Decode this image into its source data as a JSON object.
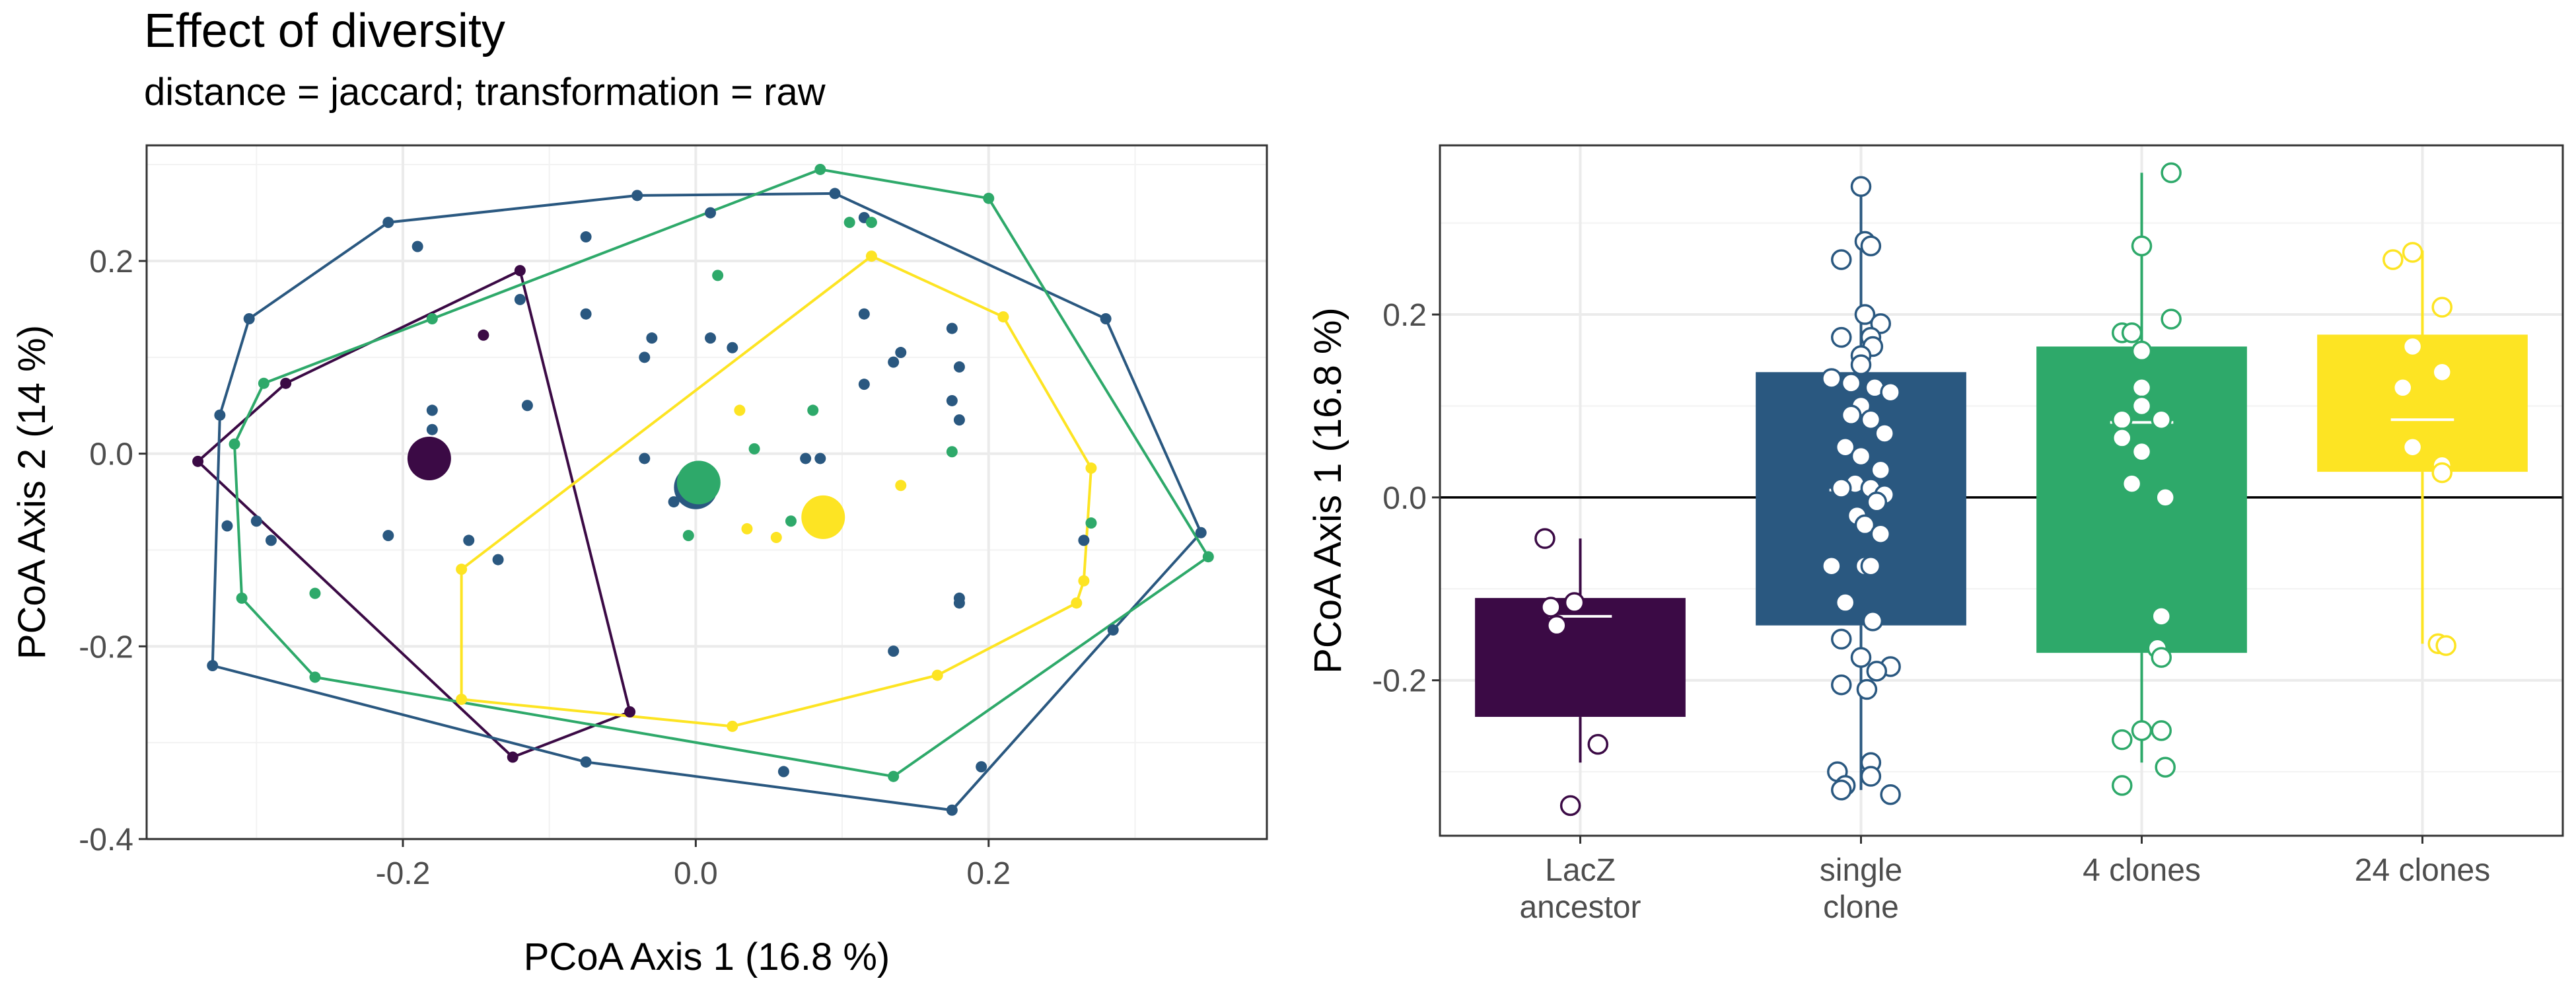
{
  "title": "Effect of diversity",
  "subtitle": "distance = jaccard; transformation = raw",
  "colors": {
    "LacZ ancestor": "#3b0a45",
    "single clone": "#2a5880",
    "4 clones": "#2ea96a",
    "24 clones": "#fde423"
  },
  "chart_data": [
    {
      "type": "scatter",
      "xlabel": "PCoA Axis 1 (16.8 %)",
      "ylabel": "PCoA Axis 2 (14 %)",
      "xlim": [
        -0.375,
        0.39
      ],
      "ylim": [
        -0.4,
        0.32
      ],
      "x_ticks": [
        "-0.2",
        "0.0",
        "0.2"
      ],
      "y_ticks": [
        "0.2",
        "0.0",
        "-0.2",
        "-0.4"
      ],
      "grid": true,
      "legend": "none",
      "series": [
        {
          "group": "LacZ ancestor",
          "points": [
            [
              -0.12,
              0.19
            ],
            [
              -0.28,
              0.073
            ],
            [
              -0.34,
              -0.008
            ],
            [
              -0.125,
              -0.315
            ],
            [
              -0.045,
              -0.268
            ],
            [
              -0.145,
              0.123
            ]
          ],
          "hull": [
            [
              -0.12,
              0.19
            ],
            [
              -0.28,
              0.073
            ],
            [
              -0.34,
              -0.008
            ],
            [
              -0.125,
              -0.315
            ],
            [
              -0.045,
              -0.268
            ]
          ],
          "centroid": [
            -0.182,
            -0.005
          ]
        },
        {
          "group": "single clone",
          "points": [
            [
              -0.21,
              0.24
            ],
            [
              -0.04,
              0.268
            ],
            [
              0.095,
              0.27
            ],
            [
              0.28,
              0.14
            ],
            [
              0.345,
              -0.082
            ],
            [
              0.285,
              -0.183
            ],
            [
              0.175,
              -0.37
            ],
            [
              -0.075,
              -0.32
            ],
            [
              -0.33,
              -0.22
            ],
            [
              -0.325,
              0.04
            ],
            [
              -0.305,
              0.14
            ],
            [
              -0.19,
              0.215
            ],
            [
              0.01,
              0.25
            ],
            [
              0.115,
              0.245
            ],
            [
              -0.075,
              0.225
            ],
            [
              -0.12,
              0.16
            ],
            [
              -0.075,
              0.145
            ],
            [
              -0.03,
              0.12
            ],
            [
              0.01,
              0.12
            ],
            [
              0.025,
              0.11
            ],
            [
              0.115,
              0.145
            ],
            [
              0.14,
              0.105
            ],
            [
              0.135,
              0.095
            ],
            [
              0.175,
              0.13
            ],
            [
              0.18,
              0.09
            ],
            [
              0.115,
              0.072
            ],
            [
              0.175,
              0.055
            ],
            [
              0.18,
              0.035
            ],
            [
              -0.035,
              0.1
            ],
            [
              -0.18,
              0.045
            ],
            [
              -0.18,
              0.025
            ],
            [
              -0.115,
              0.05
            ],
            [
              -0.035,
              -0.005
            ],
            [
              -0.015,
              -0.05
            ],
            [
              0.075,
              -0.005
            ],
            [
              0.085,
              -0.005
            ],
            [
              -0.21,
              -0.085
            ],
            [
              -0.155,
              -0.09
            ],
            [
              -0.135,
              -0.11
            ],
            [
              -0.32,
              -0.075
            ],
            [
              -0.29,
              -0.09
            ],
            [
              -0.3,
              -0.07
            ],
            [
              0.18,
              -0.15
            ],
            [
              0.18,
              -0.155
            ],
            [
              0.135,
              -0.205
            ],
            [
              0.06,
              -0.33
            ],
            [
              0.195,
              -0.325
            ],
            [
              0.265,
              -0.09
            ]
          ],
          "hull": [
            [
              -0.21,
              0.24
            ],
            [
              -0.04,
              0.268
            ],
            [
              0.095,
              0.27
            ],
            [
              0.28,
              0.14
            ],
            [
              0.345,
              -0.082
            ],
            [
              0.285,
              -0.183
            ],
            [
              0.175,
              -0.37
            ],
            [
              -0.075,
              -0.32
            ],
            [
              -0.33,
              -0.22
            ],
            [
              -0.325,
              0.04
            ],
            [
              -0.305,
              0.14
            ]
          ],
          "centroid": [
            0.0,
            -0.035
          ]
        },
        {
          "group": "4 clones",
          "points": [
            [
              -0.295,
              0.073
            ],
            [
              -0.18,
              0.14
            ],
            [
              0.085,
              0.295
            ],
            [
              0.2,
              0.265
            ],
            [
              0.35,
              -0.107
            ],
            [
              0.135,
              -0.335
            ],
            [
              -0.26,
              -0.232
            ],
            [
              -0.31,
              -0.15
            ],
            [
              -0.315,
              0.01
            ],
            [
              0.105,
              0.24
            ],
            [
              0.12,
              0.24
            ],
            [
              0.015,
              0.185
            ],
            [
              -0.26,
              -0.145
            ],
            [
              0.04,
              0.005
            ],
            [
              0.08,
              0.045
            ],
            [
              0.175,
              0.002
            ],
            [
              0.27,
              -0.072
            ],
            [
              -0.005,
              -0.085
            ],
            [
              0.065,
              -0.07
            ]
          ],
          "hull": [
            [
              -0.295,
              0.073
            ],
            [
              -0.18,
              0.14
            ],
            [
              0.085,
              0.295
            ],
            [
              0.2,
              0.265
            ],
            [
              0.35,
              -0.107
            ],
            [
              0.135,
              -0.335
            ],
            [
              -0.26,
              -0.232
            ],
            [
              -0.31,
              -0.15
            ],
            [
              -0.315,
              0.01
            ]
          ],
          "centroid": [
            0.002,
            -0.03
          ]
        },
        {
          "group": "24 clones",
          "points": [
            [
              0.12,
              0.205
            ],
            [
              0.21,
              0.142
            ],
            [
              0.27,
              -0.015
            ],
            [
              0.265,
              -0.132
            ],
            [
              0.26,
              -0.155
            ],
            [
              0.165,
              -0.23
            ],
            [
              0.025,
              -0.283
            ],
            [
              -0.16,
              -0.255
            ],
            [
              -0.16,
              -0.12
            ],
            [
              0.03,
              0.045
            ],
            [
              0.035,
              -0.078
            ],
            [
              0.055,
              -0.087
            ],
            [
              0.14,
              -0.033
            ]
          ],
          "hull": [
            [
              0.12,
              0.205
            ],
            [
              0.21,
              0.142
            ],
            [
              0.27,
              -0.015
            ],
            [
              0.265,
              -0.132
            ],
            [
              0.26,
              -0.155
            ],
            [
              0.165,
              -0.23
            ],
            [
              0.025,
              -0.283
            ],
            [
              -0.16,
              -0.255
            ],
            [
              -0.16,
              -0.12
            ]
          ],
          "centroid": [
            0.087,
            -0.066
          ]
        }
      ]
    },
    {
      "type": "box",
      "xlabel": "",
      "ylabel": "PCoA Axis 1 (16.8 %)",
      "ylim": [
        -0.37,
        0.385
      ],
      "y_ticks": [
        "0.2",
        "0.0",
        "-0.2"
      ],
      "grid": true,
      "legend": "none",
      "hline": 0,
      "categories": [
        "LacZ\nancestor",
        "single\nclone",
        "4 clones",
        "24 clones"
      ],
      "boxes": [
        {
          "group": "LacZ ancestor",
          "whisker_low": -0.29,
          "q1": -0.24,
          "median": -0.13,
          "q3": -0.11,
          "whisker_high": -0.045,
          "points": [
            [
              -0.18,
              -0.045
            ],
            [
              -0.15,
              -0.12
            ],
            [
              -0.12,
              -0.14
            ],
            [
              -0.03,
              -0.115
            ],
            [
              0.09,
              -0.27
            ],
            [
              -0.05,
              -0.337
            ]
          ]
        },
        {
          "group": "single clone",
          "whisker_low": -0.32,
          "q1": -0.14,
          "median": 0.008,
          "q3": 0.137,
          "whisker_high": 0.345,
          "points": [
            [
              0.0,
              0.34
            ],
            [
              -0.1,
              0.26
            ],
            [
              0.02,
              0.28
            ],
            [
              0.05,
              0.275
            ],
            [
              0.02,
              0.2
            ],
            [
              0.1,
              0.19
            ],
            [
              0.05,
              0.175
            ],
            [
              -0.1,
              0.175
            ],
            [
              0.06,
              0.165
            ],
            [
              0.0,
              0.155
            ],
            [
              0.0,
              0.145
            ],
            [
              -0.15,
              0.13
            ],
            [
              -0.05,
              0.125
            ],
            [
              0.07,
              0.12
            ],
            [
              0.15,
              0.115
            ],
            [
              0.0,
              0.1
            ],
            [
              -0.05,
              0.09
            ],
            [
              0.05,
              0.085
            ],
            [
              0.12,
              0.07
            ],
            [
              -0.08,
              0.055
            ],
            [
              0.0,
              0.045
            ],
            [
              0.1,
              0.03
            ],
            [
              -0.03,
              0.015
            ],
            [
              -0.1,
              0.01
            ],
            [
              0.05,
              0.01
            ],
            [
              0.12,
              0.003
            ],
            [
              0.08,
              -0.005
            ],
            [
              -0.02,
              -0.02
            ],
            [
              0.02,
              -0.03
            ],
            [
              0.1,
              -0.04
            ],
            [
              -0.15,
              -0.075
            ],
            [
              0.02,
              -0.075
            ],
            [
              0.05,
              -0.075
            ],
            [
              -0.08,
              -0.115
            ],
            [
              0.06,
              -0.135
            ],
            [
              -0.1,
              -0.155
            ],
            [
              0.0,
              -0.175
            ],
            [
              0.15,
              -0.185
            ],
            [
              0.08,
              -0.19
            ],
            [
              -0.1,
              -0.205
            ],
            [
              0.03,
              -0.21
            ],
            [
              0.05,
              -0.29
            ],
            [
              -0.12,
              -0.3
            ],
            [
              0.05,
              -0.305
            ],
            [
              -0.08,
              -0.315
            ],
            [
              -0.1,
              -0.32
            ],
            [
              0.15,
              -0.325
            ]
          ]
        },
        {
          "group": "4 clones",
          "whisker_low": -0.29,
          "q1": -0.17,
          "median": 0.082,
          "q3": 0.165,
          "whisker_high": 0.355,
          "points": [
            [
              0.15,
              0.355
            ],
            [
              0.0,
              0.275
            ],
            [
              -0.1,
              0.18
            ],
            [
              0.15,
              0.195
            ],
            [
              -0.05,
              0.18
            ],
            [
              0.0,
              0.16
            ],
            [
              0.0,
              0.12
            ],
            [
              0.0,
              0.1
            ],
            [
              -0.1,
              0.085
            ],
            [
              0.1,
              0.085
            ],
            [
              -0.1,
              0.065
            ],
            [
              0.0,
              0.05
            ],
            [
              -0.05,
              0.015
            ],
            [
              0.12,
              0.0
            ],
            [
              0.1,
              -0.13
            ],
            [
              0.08,
              -0.165
            ],
            [
              0.1,
              -0.175
            ],
            [
              0.0,
              -0.255
            ],
            [
              0.1,
              -0.255
            ],
            [
              -0.1,
              -0.265
            ],
            [
              0.12,
              -0.295
            ],
            [
              -0.1,
              -0.315
            ]
          ]
        },
        {
          "group": "24 clones",
          "whisker_low": -0.16,
          "q1": 0.028,
          "median": 0.085,
          "q3": 0.178,
          "whisker_high": 0.27,
          "points": [
            [
              -0.15,
              0.26
            ],
            [
              -0.05,
              0.268
            ],
            [
              0.1,
              0.208
            ],
            [
              -0.05,
              0.165
            ],
            [
              0.1,
              0.137
            ],
            [
              -0.1,
              0.12
            ],
            [
              -0.05,
              0.055
            ],
            [
              0.1,
              0.035
            ],
            [
              0.1,
              0.027
            ],
            [
              0.08,
              -0.16
            ],
            [
              0.12,
              -0.162
            ]
          ]
        }
      ]
    }
  ]
}
